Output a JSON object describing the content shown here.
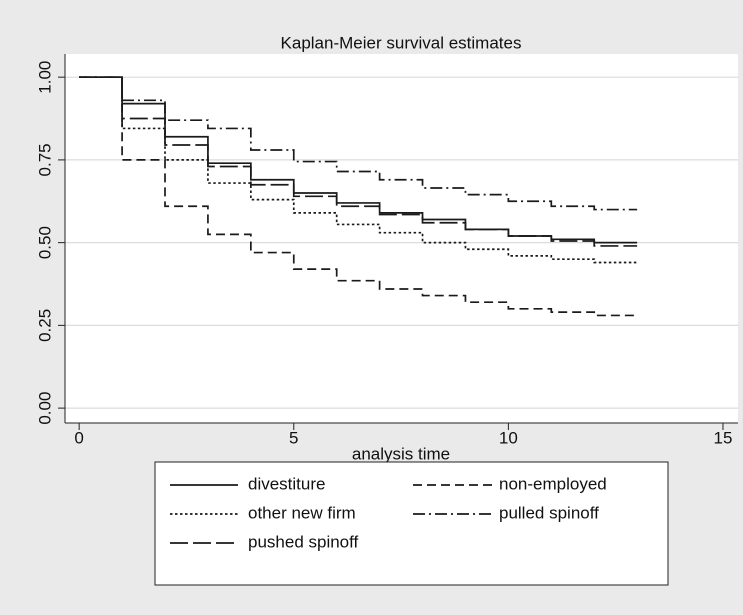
{
  "chart_data": {
    "type": "step",
    "title": "Kaplan-Meier survival estimates",
    "x_label": "analysis time",
    "x": [
      0,
      1,
      2,
      3,
      4,
      5,
      6,
      7,
      8,
      9,
      10,
      11,
      12,
      13
    ],
    "series": [
      {
        "name": "divestiture",
        "color": "#1a1a1a",
        "line_style": "solid",
        "values": [
          1.0,
          0.92,
          0.82,
          0.74,
          0.69,
          0.65,
          0.62,
          0.59,
          0.57,
          0.54,
          0.52,
          0.51,
          0.5,
          0.5
        ]
      },
      {
        "name": "non-employed",
        "color": "#1a1a1a",
        "line_style": "dash",
        "values": [
          1.0,
          0.75,
          0.61,
          0.525,
          0.47,
          0.42,
          0.385,
          0.36,
          0.34,
          0.32,
          0.3,
          0.29,
          0.28,
          0.28
        ]
      },
      {
        "name": "other new firm",
        "color": "#1a1a1a",
        "line_style": "dot",
        "values": [
          1.0,
          0.845,
          0.75,
          0.68,
          0.63,
          0.59,
          0.555,
          0.53,
          0.5,
          0.48,
          0.46,
          0.45,
          0.44,
          0.44
        ]
      },
      {
        "name": "pulled spinoff",
        "color": "#1a1a1a",
        "line_style": "dashdot",
        "values": [
          1.0,
          0.93,
          0.87,
          0.845,
          0.78,
          0.745,
          0.715,
          0.69,
          0.665,
          0.645,
          0.625,
          0.61,
          0.6,
          0.6
        ]
      },
      {
        "name": "pushed spinoff",
        "color": "#1a1a1a",
        "line_style": "longdash",
        "values": [
          1.0,
          0.875,
          0.795,
          0.73,
          0.675,
          0.64,
          0.61,
          0.585,
          0.56,
          0.54,
          0.52,
          0.505,
          0.49,
          0.49
        ]
      }
    ],
    "xlim": [
      -0.33,
      15.35
    ],
    "xticks": [
      0,
      5,
      10,
      15
    ],
    "ylim": [
      -0.045,
      1.07
    ],
    "yticks": [
      {
        "value": 0,
        "label": "0.00"
      },
      {
        "value": 0.25,
        "label": "0.25"
      },
      {
        "value": 0.5,
        "label": "0.50"
      },
      {
        "value": 0.75,
        "label": "0.75"
      },
      {
        "value": 1,
        "label": "1.00"
      }
    ],
    "grid": true
  }
}
